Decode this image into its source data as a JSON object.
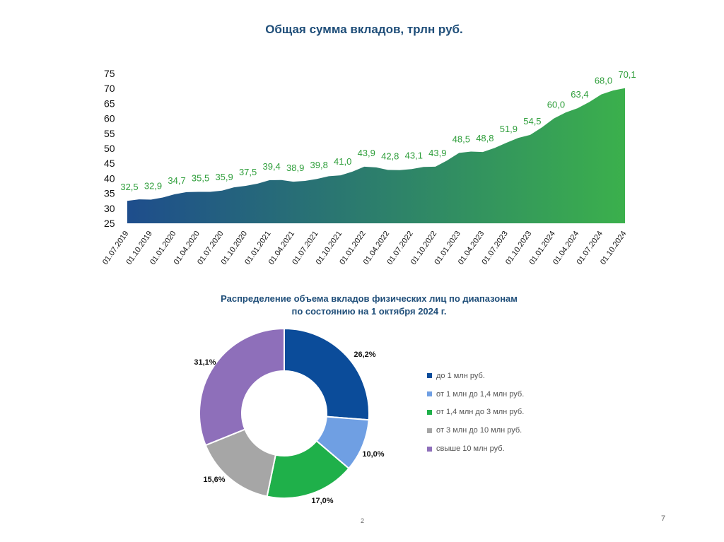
{
  "page": {
    "number": "7",
    "footer_mark": "2"
  },
  "colors": {
    "area_start": "#1e4d8c",
    "area_end": "#3bb04c",
    "label_green": "#2e9e3a",
    "title_blue": "#1f4e79"
  },
  "chart_data": [
    {
      "type": "area",
      "title": "Общая сумма вкладов, трлн руб.",
      "xlabel": "",
      "ylabel": "",
      "ylim": [
        25,
        75
      ],
      "yticks": [
        "25",
        "30",
        "35",
        "40",
        "45",
        "50",
        "55",
        "60",
        "65",
        "70",
        "75"
      ],
      "categories": [
        "01.07.2019",
        "01.10.2019",
        "01.01.2020",
        "01.04.2020",
        "01.07.2020",
        "01.10.2020",
        "01.01.2021",
        "01.04.2021",
        "01.07.2021",
        "01.10.2021",
        "01.01.2022",
        "01.04.2022",
        "01.07.2022",
        "01.10.2022",
        "01.01.2023",
        "01.04.2023",
        "01.07.2023",
        "01.10.2023",
        "01.01.2024",
        "01.04.2024",
        "01.07.2024",
        "01.10.2024"
      ],
      "values": [
        32.5,
        32.9,
        34.7,
        35.5,
        35.9,
        37.5,
        39.4,
        38.9,
        39.8,
        41.0,
        43.9,
        42.8,
        43.1,
        43.9,
        48.5,
        48.8,
        51.9,
        54.5,
        60.0,
        63.4,
        68.0,
        70.1
      ],
      "value_labels": [
        "32,5",
        "32,9",
        "34,7",
        "35,5",
        "35,9",
        "37,5",
        "39,4",
        "38,9",
        "39,8",
        "41,0",
        "43,9",
        "42,8",
        "43,1",
        "43,9",
        "48,5",
        "48,8",
        "51,9",
        "54,5",
        "60,0",
        "63,4",
        "68,0",
        "70,1"
      ]
    },
    {
      "type": "pie",
      "style": "donut",
      "title": "Распределение объема вкладов физических лиц по диапазонам по состоянию на 1 октября 2024 г.",
      "title_lines": [
        "Распределение объема вкладов физических лиц по диапазонам",
        "по состоянию на 1 октября 2024 г."
      ],
      "legend_position": "right",
      "slices": [
        {
          "name": "до 1 млн руб.",
          "value": 26.2,
          "label": "26,2%",
          "color": "#0b4c9a"
        },
        {
          "name": "от 1 млн до 1,4 млн руб.",
          "value": 10.0,
          "label": "10,0%",
          "color": "#6f9fe3"
        },
        {
          "name": "от 1,4 млн до 3 млн руб.",
          "value": 17.0,
          "label": "17,0%",
          "color": "#1fb04a"
        },
        {
          "name": "от 3 млн до 10 млн руб.",
          "value": 15.6,
          "label": "15,6%",
          "color": "#a6a6a6"
        },
        {
          "name": "свыше 10 млн руб.",
          "value": 31.1,
          "label": "31,1%",
          "color": "#8e6fba"
        }
      ]
    }
  ]
}
